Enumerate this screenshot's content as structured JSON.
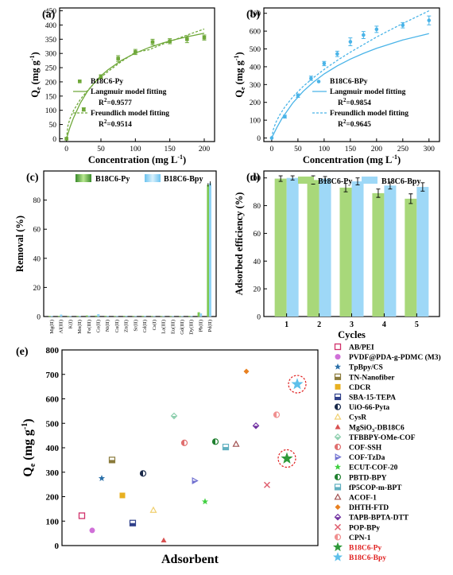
{
  "panel_labels": [
    "(a)",
    "(b)",
    "(c)",
    "(d)",
    "(e)"
  ],
  "chart_data": [
    {
      "id": "a",
      "type": "scatter",
      "xlabel": "Concentration (mg L",
      "xlabel_sup": "-1",
      "xlabel_close": ")",
      "ylabel": "Q",
      "ylabel_sub": "e",
      "ylabel_unit": "(mg g",
      "ylabel_sup": "-1",
      "xlim": [
        -10,
        215
      ],
      "ylim": [
        -10,
        460
      ],
      "xticks": [
        0,
        50,
        100,
        150,
        200
      ],
      "yticks": [
        0,
        50,
        100,
        150,
        200,
        250,
        300,
        350,
        400,
        450
      ],
      "color": "#6fa83a",
      "series": [
        {
          "name": "B18C6-Py",
          "kind": "points",
          "x": [
            0,
            25,
            50,
            75,
            100,
            125,
            150,
            175,
            200
          ],
          "y": [
            0,
            103,
            218,
            282,
            305,
            340,
            343,
            350,
            356
          ],
          "err": [
            0,
            6,
            7,
            10,
            9,
            10,
            9,
            12,
            9
          ]
        },
        {
          "name": "Langmuir model fitting",
          "kind": "solid",
          "x": [
            0,
            5,
            10,
            20,
            30,
            40,
            50,
            60,
            80,
            100,
            120,
            140,
            160,
            180,
            200
          ],
          "y": [
            0,
            40,
            72,
            125,
            165,
            196,
            221,
            242,
            276,
            301,
            321,
            337,
            350,
            361,
            371
          ]
        },
        {
          "name": "Freundlich model fitting",
          "kind": "dashed",
          "x": [
            0,
            2,
            5,
            10,
            20,
            30,
            40,
            50,
            60,
            80,
            100,
            120,
            140,
            160,
            180,
            200
          ],
          "y": [
            0,
            45,
            70,
            98,
            138,
            168,
            194,
            216,
            236,
            272,
            304,
            313,
            333,
            351,
            369,
            386
          ]
        }
      ],
      "annotations": [
        "R",
        "2",
        "=0.9577",
        "R",
        "2",
        "=0.9514"
      ]
    },
    {
      "id": "b",
      "type": "scatter",
      "xlabel": "Concentration (mg L",
      "xlabel_sup": "-1",
      "xlabel_close": ")",
      "ylabel": "Q",
      "ylabel_sub": "e",
      "ylabel_unit": "(mg g",
      "ylabel_sup": "-1",
      "xlim": [
        -15,
        320
      ],
      "ylim": [
        -20,
        730
      ],
      "xticks": [
        0,
        50,
        100,
        150,
        200,
        250,
        300
      ],
      "yticks": [
        0,
        100,
        200,
        300,
        400,
        500,
        600,
        700
      ],
      "color": "#4ab4e8",
      "series": [
        {
          "name": "B18C6-BPy",
          "kind": "points",
          "x": [
            0,
            25,
            50,
            75,
            100,
            125,
            150,
            175,
            200,
            250,
            300
          ],
          "y": [
            0,
            120,
            238,
            335,
            418,
            472,
            540,
            578,
            610,
            633,
            660
          ],
          "err": [
            0,
            8,
            10,
            12,
            12,
            15,
            22,
            20,
            18,
            15,
            25
          ]
        },
        {
          "name": "Langmuir model fitting",
          "kind": "solid",
          "x": [
            0,
            10,
            20,
            40,
            60,
            80,
            100,
            125,
            150,
            175,
            200,
            250,
            300
          ],
          "y": [
            0,
            60,
            112,
            196,
            262,
            315,
            360,
            405,
            443,
            475,
            503,
            550,
            586
          ]
        },
        {
          "name": "Freundlich model fitting",
          "kind": "dashed",
          "x": [
            0,
            3,
            8,
            15,
            25,
            40,
            60,
            80,
            100,
            125,
            150,
            200,
            250,
            300
          ],
          "y": [
            0,
            48,
            88,
            128,
            174,
            230,
            290,
            340,
            385,
            436,
            482,
            567,
            643,
            714
          ]
        }
      ],
      "annotations": [
        "R",
        "2",
        "=0.9854",
        "R",
        "2",
        "=0.9645"
      ]
    },
    {
      "id": "c",
      "type": "bar",
      "ylabel": "Removal (%)",
      "ylim": [
        0,
        100
      ],
      "yticks": [
        0,
        20,
        40,
        60,
        80
      ],
      "categories": [
        "Mg(II)",
        "Al(III)",
        "K(I)",
        "Mn(II)",
        "Fe(III)",
        "Co(II)",
        "Ni(II)",
        "Cu(II)",
        "Zn(II)",
        "Sr(II)",
        "Cd(II)",
        "Cs(I)",
        "La(III)",
        "Eu(III)",
        "Gd(III)",
        "Dy(III)",
        "Pb(II)",
        "Pd(II)"
      ],
      "series": [
        {
          "name": "B18C6-Py",
          "color": "#7ec850",
          "values": [
            0.3,
            0.3,
            0.2,
            0.3,
            0.6,
            0.5,
            0.3,
            0.2,
            0.3,
            0.2,
            0.3,
            0.2,
            0.2,
            0.2,
            0.2,
            0.3,
            2.8,
            90.5
          ]
        },
        {
          "name": "B18C6-Bpy",
          "color": "#8fd3f5",
          "values": [
            0.3,
            1.2,
            0.2,
            0.3,
            0.5,
            1.5,
            0.3,
            0.2,
            0.3,
            0.2,
            0.3,
            0.2,
            0.2,
            0.2,
            0.2,
            0.3,
            2.0,
            91.5
          ]
        }
      ]
    },
    {
      "id": "d",
      "type": "bar",
      "xlabel": "Cycles",
      "ylabel": "Adsorbed efficiency (%)",
      "ylim": [
        0,
        105
      ],
      "yticks": [
        0,
        20,
        40,
        60,
        80,
        100
      ],
      "categories": [
        "1",
        "2",
        "3",
        "4",
        "5"
      ],
      "series": [
        {
          "name": "B18C6-Py",
          "color": "#a8d87a",
          "values": [
            99.5,
            98.5,
            93,
            89,
            85
          ],
          "err": [
            2,
            3,
            3,
            3,
            3.5
          ]
        },
        {
          "name": "B18C6-Bpy",
          "color": "#9ed8f7",
          "values": [
            100,
            99.5,
            97.5,
            94.5,
            93.5
          ],
          "err": [
            1.5,
            1.5,
            2.5,
            2.5,
            3
          ]
        }
      ]
    },
    {
      "id": "e",
      "type": "scatter",
      "xlabel": "Adsorbent",
      "ylabel": "Q",
      "ylabel_sub": "e",
      "ylabel_unit": "(mg g",
      "ylabel_sup": "-1",
      "ylim": [
        0,
        800
      ],
      "yticks": [
        0,
        100,
        200,
        300,
        400,
        500,
        600,
        700,
        800
      ],
      "series": [
        {
          "name": "AB/PEI",
          "marker": "square-open",
          "color": "#d0306a",
          "x": 1,
          "y": 122
        },
        {
          "name": "PVDF@PDA-g-PDMC (M3)",
          "marker": "circle",
          "color": "#d070d8",
          "x": 2,
          "y": 62
        },
        {
          "name": "TpBpy/CS",
          "marker": "star",
          "color": "#2a6fa8",
          "x": 3,
          "y": 275
        },
        {
          "name": "TN-Nanofiber",
          "marker": "square-half",
          "color": "#8a7a3a",
          "x": 4,
          "y": 350
        },
        {
          "name": "CDCR",
          "marker": "square",
          "color": "#e8b020",
          "x": 5,
          "y": 205
        },
        {
          "name": "SBA-15-TEPA",
          "marker": "square-half",
          "color": "#2f3f8a",
          "x": 6,
          "y": 92
        },
        {
          "name": "UiO-66-Pyta",
          "marker": "circle-half",
          "color": "#1a2a4a",
          "x": 7,
          "y": 295
        },
        {
          "name": "CysR",
          "marker": "triangle-open",
          "color": "#f0d070",
          "x": 8,
          "y": 145
        },
        {
          "name": "MgSiO",
          "name_sub": "3",
          "name_rest": "-DB18C6",
          "marker": "triangle",
          "color": "#d85050",
          "x": 9,
          "y": 22
        },
        {
          "name": "TFBBPY-OMe-COF",
          "marker": "diamond-half",
          "color": "#90d0b0",
          "x": 10,
          "y": 530
        },
        {
          "name": "COF-SSH",
          "marker": "circle-half",
          "color": "#e07070",
          "x": 11,
          "y": 420
        },
        {
          "name": "COF-TzDa",
          "marker": "triangle-right",
          "color": "#7070d0",
          "x": 12,
          "y": 265
        },
        {
          "name": "ECUT-COF-20",
          "marker": "star",
          "color": "#40d040",
          "x": 13,
          "y": 180
        },
        {
          "name": "PBTD-BPY",
          "marker": "circle-half",
          "color": "#208030",
          "x": 14,
          "y": 425
        },
        {
          "name": "fP5COP-m-BPT",
          "marker": "square-half",
          "color": "#60b0c0",
          "x": 15,
          "y": 403
        },
        {
          "name": "ACOF-1",
          "marker": "triangle-open",
          "color": "#a05050",
          "x": 16,
          "y": 415
        },
        {
          "name": "DHTH-FTD",
          "marker": "diamond",
          "color": "#e88020",
          "x": 17,
          "y": 712
        },
        {
          "name": "TAPB-BPTA-DTT",
          "marker": "diamond-half",
          "color": "#7030a0",
          "x": 18,
          "y": 490
        },
        {
          "name": "POP-BPy",
          "marker": "cross",
          "color": "#e06070",
          "x": 19,
          "y": 248
        },
        {
          "name": "CPN-1",
          "marker": "circle-half",
          "color": "#f09090",
          "x": 20,
          "y": 535
        },
        {
          "name": "B18C6-Py",
          "marker": "star",
          "color": "#2f9a3a",
          "x": 21,
          "y": 356,
          "highlight": true,
          "label_color": "#e02020"
        },
        {
          "name": "B18C6-Bpy",
          "marker": "star",
          "color": "#5ec0ea",
          "x": 22,
          "y": 660,
          "highlight": true,
          "label_color": "#e02020"
        }
      ]
    }
  ]
}
